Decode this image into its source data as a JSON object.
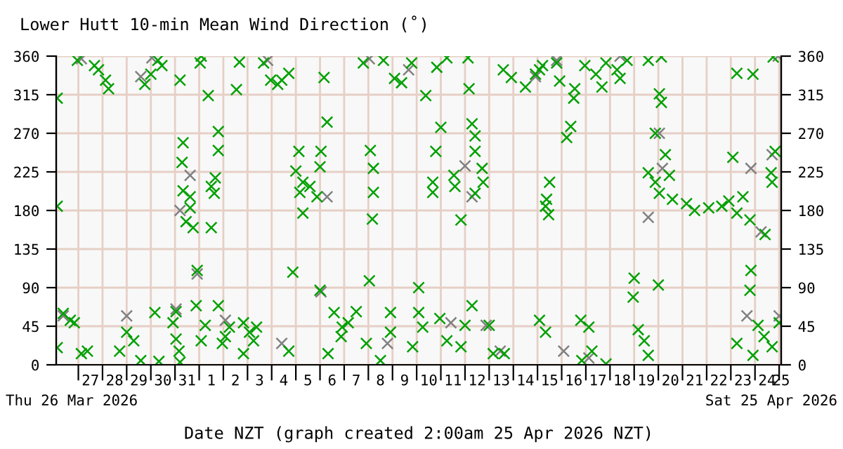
{
  "chart_data": {
    "type": "scatter",
    "title": "Lower Hutt 10-min Mean Wind Direction (˚)",
    "xlabel": "Date NZT (graph created 2:00am 25 Apr 2026 NZT)",
    "annotations": [
      "Thu 26 Mar 2026",
      "Sat 25 Apr 2026"
    ],
    "marker": "cross",
    "grid": true,
    "xlim": [
      "2026-03-26T02:00",
      "2026-04-25T02:00"
    ],
    "xticks": [
      {
        "value": "2026-03-27",
        "label": null
      },
      {
        "value": "2026-03-28",
        "label": null
      },
      {
        "value": "2026-03-29",
        "label": null
      },
      {
        "value": "2026-03-30",
        "label": null
      },
      {
        "value": "2026-03-31",
        "label": null
      },
      {
        "value": "2026-04-01",
        "label": null
      },
      {
        "value": "2026-04-02",
        "label": null
      },
      {
        "value": "2026-04-03",
        "label": null
      },
      {
        "value": "2026-04-04",
        "label": null
      },
      {
        "value": "2026-04-05",
        "label": null
      },
      {
        "value": "2026-04-06",
        "label": null
      },
      {
        "value": "2026-04-07",
        "label": null
      },
      {
        "value": "2026-04-08",
        "label": null
      },
      {
        "value": "2026-04-09",
        "label": null
      },
      {
        "value": "2026-04-10",
        "label": null
      },
      {
        "value": "2026-04-11",
        "label": null
      },
      {
        "value": "2026-04-12",
        "label": null
      },
      {
        "value": "2026-04-13",
        "label": null
      },
      {
        "value": "2026-04-14",
        "label": null
      },
      {
        "value": "2026-04-15",
        "label": null
      },
      {
        "value": "2026-04-16",
        "label": null
      },
      {
        "value": "2026-04-17",
        "label": null
      },
      {
        "value": "2026-04-18",
        "label": null
      },
      {
        "value": "2026-04-19",
        "label": null
      },
      {
        "value": "2026-04-20",
        "label": null
      },
      {
        "value": "2026-04-21",
        "label": null
      },
      {
        "value": "2026-04-22",
        "label": null
      },
      {
        "value": "2026-04-23",
        "label": null
      },
      {
        "value": "2026-04-24",
        "label": null
      },
      {
        "value": "2026-04-25",
        "label": null
      },
      {
        "value": "2026-03-27T12:00",
        "label": "27"
      },
      {
        "value": "2026-03-28T12:00",
        "label": "28"
      },
      {
        "value": "2026-03-29T12:00",
        "label": "29"
      },
      {
        "value": "2026-03-30T12:00",
        "label": "30"
      },
      {
        "value": "2026-03-31T12:00",
        "label": "31"
      },
      {
        "value": "2026-04-01T12:00",
        "label": "1"
      },
      {
        "value": "2026-04-02T12:00",
        "label": "2"
      },
      {
        "value": "2026-04-03T12:00",
        "label": "3"
      },
      {
        "value": "2026-04-04T12:00",
        "label": "4"
      },
      {
        "value": "2026-04-05T12:00",
        "label": "5"
      },
      {
        "value": "2026-04-06T12:00",
        "label": "6"
      },
      {
        "value": "2026-04-07T12:00",
        "label": "7"
      },
      {
        "value": "2026-04-08T12:00",
        "label": "8"
      },
      {
        "value": "2026-04-09T12:00",
        "label": "9"
      },
      {
        "value": "2026-04-10T12:00",
        "label": "10"
      },
      {
        "value": "2026-04-11T12:00",
        "label": "11"
      },
      {
        "value": "2026-04-12T12:00",
        "label": "12"
      },
      {
        "value": "2026-04-13T12:00",
        "label": "13"
      },
      {
        "value": "2026-04-14T12:00",
        "label": "14"
      },
      {
        "value": "2026-04-15T12:00",
        "label": "15"
      },
      {
        "value": "2026-04-16T12:00",
        "label": "16"
      },
      {
        "value": "2026-04-17T12:00",
        "label": "17"
      },
      {
        "value": "2026-04-18T12:00",
        "label": "18"
      },
      {
        "value": "2026-04-19T12:00",
        "label": "19"
      },
      {
        "value": "2026-04-20T12:00",
        "label": "20"
      },
      {
        "value": "2026-04-21T12:00",
        "label": "21"
      },
      {
        "value": "2026-04-22T12:00",
        "label": "22"
      },
      {
        "value": "2026-04-23T12:00",
        "label": "23"
      },
      {
        "value": "2026-04-24T12:00",
        "label": "24"
      },
      {
        "value": "2026-04-25T02:00",
        "label": "25"
      }
    ],
    "ylim": [
      0,
      360
    ],
    "yticks": [
      0,
      45,
      90,
      135,
      180,
      225,
      270,
      315,
      360
    ],
    "y2lim": [
      0,
      360
    ],
    "y2ticks": [
      0,
      45,
      90,
      135,
      180,
      225,
      270,
      315,
      360
    ],
    "series": [
      {
        "color": "#808080",
        "x": [
          "2026-03-26T09:00",
          "2026-03-27T03:00",
          "2026-03-29T00:00",
          "2026-03-29T14:00",
          "2026-03-30T01:00",
          "2026-03-31T01:00",
          "2026-03-31T05:00",
          "2026-03-31T15:00",
          "2026-03-31T22:00",
          "2026-04-02T02:00",
          "2026-04-03T20:00",
          "2026-04-04T10:00",
          "2026-04-06T01:00",
          "2026-04-06T07:00",
          "2026-04-08T01:00",
          "2026-04-08T19:00",
          "2026-04-09T16:00",
          "2026-04-11T10:00",
          "2026-04-12T00:00",
          "2026-04-12T07:00",
          "2026-04-12T21:00",
          "2026-04-13T11:00",
          "2026-04-14T22:00",
          "2026-04-15T19:00",
          "2026-04-16T02:00",
          "2026-04-17T03:00",
          "2026-04-18T10:00",
          "2026-04-19T14:00",
          "2026-04-20T01:00",
          "2026-04-20T04:00",
          "2026-04-23T16:00",
          "2026-04-23T20:00",
          "2026-04-24T06:00",
          "2026-04-24T17:00",
          "2026-04-24T23:00",
          "2026-04-25T00:00"
        ],
        "values": [
          57,
          357,
          57,
          336,
          358,
          65,
          180,
          221,
          106,
          52,
          355,
          25,
          85,
          196,
          357,
          25,
          344,
          49,
          232,
          196,
          46,
          16,
          336,
          355,
          16,
          8,
          360,
          172,
          270,
          229,
          57,
          229,
          155,
          245,
          360,
          57
        ]
      },
      {
        "color": "#00a000",
        "x": [
          "2026-03-26T03:00",
          "2026-03-26T03:00",
          "2026-03-26T03:00",
          "2026-03-26T09:00",
          "2026-03-26T16:00",
          "2026-03-26T20:00",
          "2026-03-26T23:00",
          "2026-03-27T03:00",
          "2026-03-27T09:00",
          "2026-03-27T16:00",
          "2026-03-27T20:00",
          "2026-03-28T03:00",
          "2026-03-28T06:00",
          "2026-03-28T17:00",
          "2026-03-29T00:00",
          "2026-03-29T07:00",
          "2026-03-29T14:00",
          "2026-03-29T18:00",
          "2026-03-30T00:00",
          "2026-03-30T04:00",
          "2026-03-30T07:00",
          "2026-03-30T08:00",
          "2026-03-30T11:00",
          "2026-03-30T22:00",
          "2026-03-31T01:00",
          "2026-03-31T01:00",
          "2026-03-31T04:00",
          "2026-03-31T05:00",
          "2026-03-31T05:00",
          "2026-03-31T07:00",
          "2026-03-31T08:00",
          "2026-03-31T08:00",
          "2026-03-31T11:00",
          "2026-03-31T15:00",
          "2026-03-31T15:00",
          "2026-03-31T18:00",
          "2026-03-31T21:00",
          "2026-03-31T22:00",
          "2026-04-01T01:00",
          "2026-04-01T02:00",
          "2026-04-01T02:00",
          "2026-04-01T06:00",
          "2026-04-01T09:00",
          "2026-04-01T12:00",
          "2026-04-01T12:00",
          "2026-04-01T15:00",
          "2026-04-01T16:00",
          "2026-04-01T19:00",
          "2026-04-01T19:00",
          "2026-04-01T19:00",
          "2026-04-01T23:00",
          "2026-04-02T02:00",
          "2026-04-02T06:00",
          "2026-04-02T13:00",
          "2026-04-02T16:00",
          "2026-04-02T20:00",
          "2026-04-02T20:00",
          "2026-04-03T02:00",
          "2026-04-03T06:00",
          "2026-04-03T09:00",
          "2026-04-03T16:00",
          "2026-04-03T23:00",
          "2026-04-04T06:00",
          "2026-04-04T10:00",
          "2026-04-04T17:00",
          "2026-04-04T17:00",
          "2026-04-04T21:00",
          "2026-04-05T00:00",
          "2026-04-05T03:00",
          "2026-04-05T04:00",
          "2026-04-05T07:00",
          "2026-04-05T07:00",
          "2026-04-05T14:00",
          "2026-04-05T21:00",
          "2026-04-06T00:00",
          "2026-04-06T00:00",
          "2026-04-06T01:00",
          "2026-04-06T04:00",
          "2026-04-06T07:00",
          "2026-04-06T08:00",
          "2026-04-06T14:00",
          "2026-04-06T21:00",
          "2026-04-06T22:00",
          "2026-04-07T04:00",
          "2026-04-07T12:00",
          "2026-04-07T19:00",
          "2026-04-07T22:00",
          "2026-04-08T01:00",
          "2026-04-08T02:00",
          "2026-04-08T04:00",
          "2026-04-08T05:00",
          "2026-04-08T05:00",
          "2026-04-08T12:00",
          "2026-04-08T15:00",
          "2026-04-08T22:00",
          "2026-04-08T22:00",
          "2026-04-09T02:00",
          "2026-04-09T09:00",
          "2026-04-09T19:00",
          "2026-04-09T20:00",
          "2026-04-10T02:00",
          "2026-04-10T02:00",
          "2026-04-10T06:00",
          "2026-04-10T09:00",
          "2026-04-10T16:00",
          "2026-04-10T16:00",
          "2026-04-10T19:00",
          "2026-04-10T20:00",
          "2026-04-10T23:00",
          "2026-04-11T00:00",
          "2026-04-11T06:00",
          "2026-04-11T06:00",
          "2026-04-11T13:00",
          "2026-04-11T14:00",
          "2026-04-11T20:00",
          "2026-04-11T20:00",
          "2026-04-12T00:00",
          "2026-04-12T03:00",
          "2026-04-12T04:00",
          "2026-04-12T07:00",
          "2026-04-12T07:00",
          "2026-04-12T10:00",
          "2026-04-12T10:00",
          "2026-04-12T10:00",
          "2026-04-12T17:00",
          "2026-04-12T18:00",
          "2026-04-13T00:00",
          "2026-04-13T04:00",
          "2026-04-13T14:00",
          "2026-04-13T15:00",
          "2026-04-13T22:00",
          "2026-04-14T12:00",
          "2026-04-14T22:00",
          "2026-04-15T02:00",
          "2026-04-15T02:00",
          "2026-04-15T05:00",
          "2026-04-15T08:00",
          "2026-04-15T08:00",
          "2026-04-15T09:00",
          "2026-04-15T11:00",
          "2026-04-15T12:00",
          "2026-04-15T19:00",
          "2026-04-15T22:00",
          "2026-04-16T05:00",
          "2026-04-16T09:00",
          "2026-04-16T12:00",
          "2026-04-16T13:00",
          "2026-04-16T19:00",
          "2026-04-16T20:00",
          "2026-04-16T23:00",
          "2026-04-17T03:00",
          "2026-04-17T06:00",
          "2026-04-17T10:00",
          "2026-04-17T16:00",
          "2026-04-17T20:00",
          "2026-04-17T20:00",
          "2026-04-18T07:00",
          "2026-04-18T10:00",
          "2026-04-18T17:00",
          "2026-04-18T23:00",
          "2026-04-19T00:00",
          "2026-04-19T04:00",
          "2026-04-19T10:00",
          "2026-04-19T14:00",
          "2026-04-19T14:00",
          "2026-04-19T14:00",
          "2026-04-19T21:00",
          "2026-04-19T21:00",
          "2026-04-20T00:00",
          "2026-04-20T01:00",
          "2026-04-20T01:00",
          "2026-04-20T03:00",
          "2026-04-20T03:00",
          "2026-04-20T07:00",
          "2026-04-20T11:00",
          "2026-04-20T14:00",
          "2026-04-21T04:00",
          "2026-04-21T12:00",
          "2026-04-22T02:00",
          "2026-04-22T15:00",
          "2026-04-22T22:00",
          "2026-04-23T02:00",
          "2026-04-23T06:00",
          "2026-04-23T06:00",
          "2026-04-23T06:00",
          "2026-04-23T12:00",
          "2026-04-23T19:00",
          "2026-04-23T19:00",
          "2026-04-23T20:00",
          "2026-04-23T22:00",
          "2026-04-23T22:00",
          "2026-04-24T03:00",
          "2026-04-24T09:00",
          "2026-04-24T10:00",
          "2026-04-24T16:00",
          "2026-04-24T17:00",
          "2026-04-24T17:00",
          "2026-04-24T20:00",
          "2026-04-24T18:00",
          "2026-04-25T00:00"
        ],
        "values": [
          311,
          185,
          20,
          60,
          52,
          49,
          355,
          13,
          16,
          349,
          344,
          332,
          322,
          16,
          38,
          28,
          5,
          327,
          339,
          61,
          355,
          4,
          349,
          49,
          62,
          30,
          16,
          3,
          332,
          236,
          259,
          203,
          167,
          196,
          183,
          160,
          69,
          110,
          352,
          360,
          28,
          46,
          314,
          208,
          160,
          200,
          218,
          272,
          250,
          69,
          25,
          33,
          44,
          321,
          353,
          49,
          13,
          38,
          28,
          44,
          352,
          332,
          327,
          332,
          340,
          16,
          108,
          226,
          249,
          201,
          213,
          177,
          208,
          196,
          231,
          87,
          249,
          335,
          283,
          13,
          61,
          33,
          44,
          49,
          62,
          352,
          25,
          98,
          250,
          170,
          229,
          201,
          5,
          355,
          38,
          61,
          334,
          329,
          352,
          21,
          90,
          61,
          44,
          314,
          213,
          201,
          249,
          347,
          54,
          277,
          358,
          28,
          221,
          208,
          169,
          21,
          46,
          358,
          322,
          69,
          281,
          267,
          249,
          200,
          229,
          213,
          46,
          13,
          344,
          13,
          335,
          324,
          339,
          52,
          344,
          349,
          38,
          185,
          193,
          175,
          213,
          352,
          331,
          265,
          278,
          311,
          322,
          52,
          5,
          349,
          44,
          16,
          339,
          324,
          352,
          1,
          344,
          334,
          355,
          79,
          101,
          41,
          28,
          355,
          11,
          224,
          270,
          213,
          93,
          316,
          200,
          306,
          359,
          245,
          221,
          193,
          188,
          180,
          183,
          185,
          191,
          242,
          340,
          25,
          177,
          196,
          169,
          87,
          110,
          339,
          11,
          46,
          33,
          152,
          224,
          213,
          21,
          249,
          359,
          49
        ]
      }
    ]
  }
}
